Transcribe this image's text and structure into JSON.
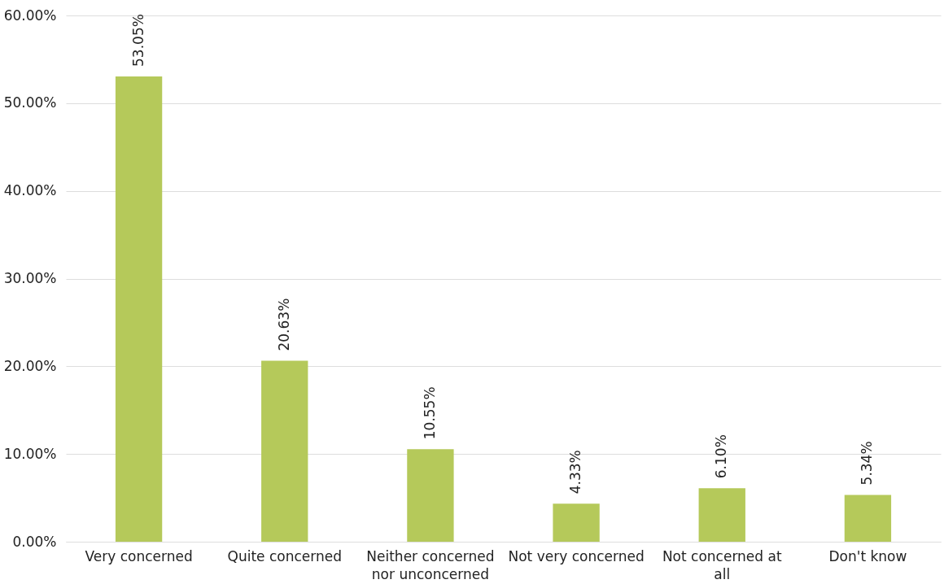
{
  "chart_data": {
    "type": "bar",
    "categories": [
      "Very concerned",
      "Quite concerned",
      "Neither concerned nor unconcerned",
      "Not very concerned",
      "Not concerned at all",
      "Don't know"
    ],
    "values": [
      53.05,
      20.63,
      10.55,
      4.33,
      6.1,
      5.34
    ],
    "value_labels": [
      "53.05%",
      "20.63%",
      "10.55%",
      "4.33%",
      "6.10%",
      "5.34%"
    ],
    "color": "#b5c95a",
    "ylim": [
      0,
      60
    ],
    "yticks": [
      {
        "value": 0,
        "label": "0.00%"
      },
      {
        "value": 10,
        "label": "10.00%"
      },
      {
        "value": 20,
        "label": "20.00%"
      },
      {
        "value": 30,
        "label": "30.00%"
      },
      {
        "value": 40,
        "label": "40.00%"
      },
      {
        "value": 50,
        "label": "50.00%"
      },
      {
        "value": 60,
        "label": "60.00%"
      }
    ],
    "grid": "y"
  }
}
